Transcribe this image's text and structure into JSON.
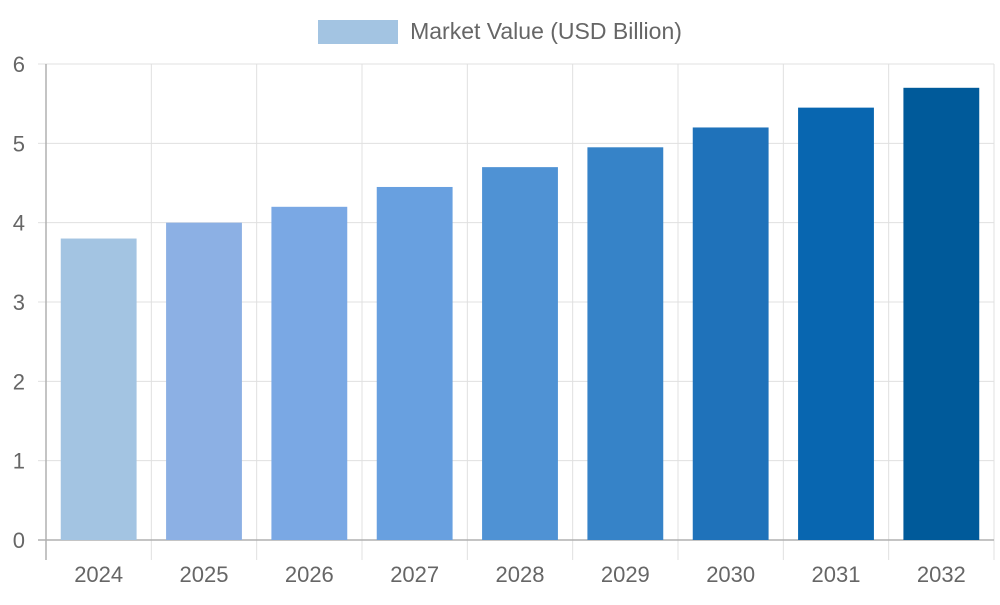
{
  "chart_data": {
    "type": "bar",
    "categories": [
      "2024",
      "2025",
      "2026",
      "2027",
      "2028",
      "2029",
      "2030",
      "2031",
      "2032"
    ],
    "series": [
      {
        "name": "Market Value (USD Billion)",
        "values": [
          3.8,
          4.0,
          4.2,
          4.45,
          4.7,
          4.95,
          5.2,
          5.45,
          5.7
        ]
      }
    ],
    "bar_colors": [
      "#a3c4e2",
      "#8cb0e4",
      "#7aa8e4",
      "#68a0e0",
      "#4f92d4",
      "#3683c8",
      "#1f72ba",
      "#0866b0",
      "#005a9a"
    ],
    "legend_color": "#a3c4e2",
    "ylim": [
      0,
      6
    ],
    "yticks": [
      "0",
      "1",
      "2",
      "3",
      "4",
      "5",
      "6"
    ],
    "grid": true,
    "legend_position": "top-center",
    "xlabel": "",
    "ylabel": "",
    "title": ""
  }
}
